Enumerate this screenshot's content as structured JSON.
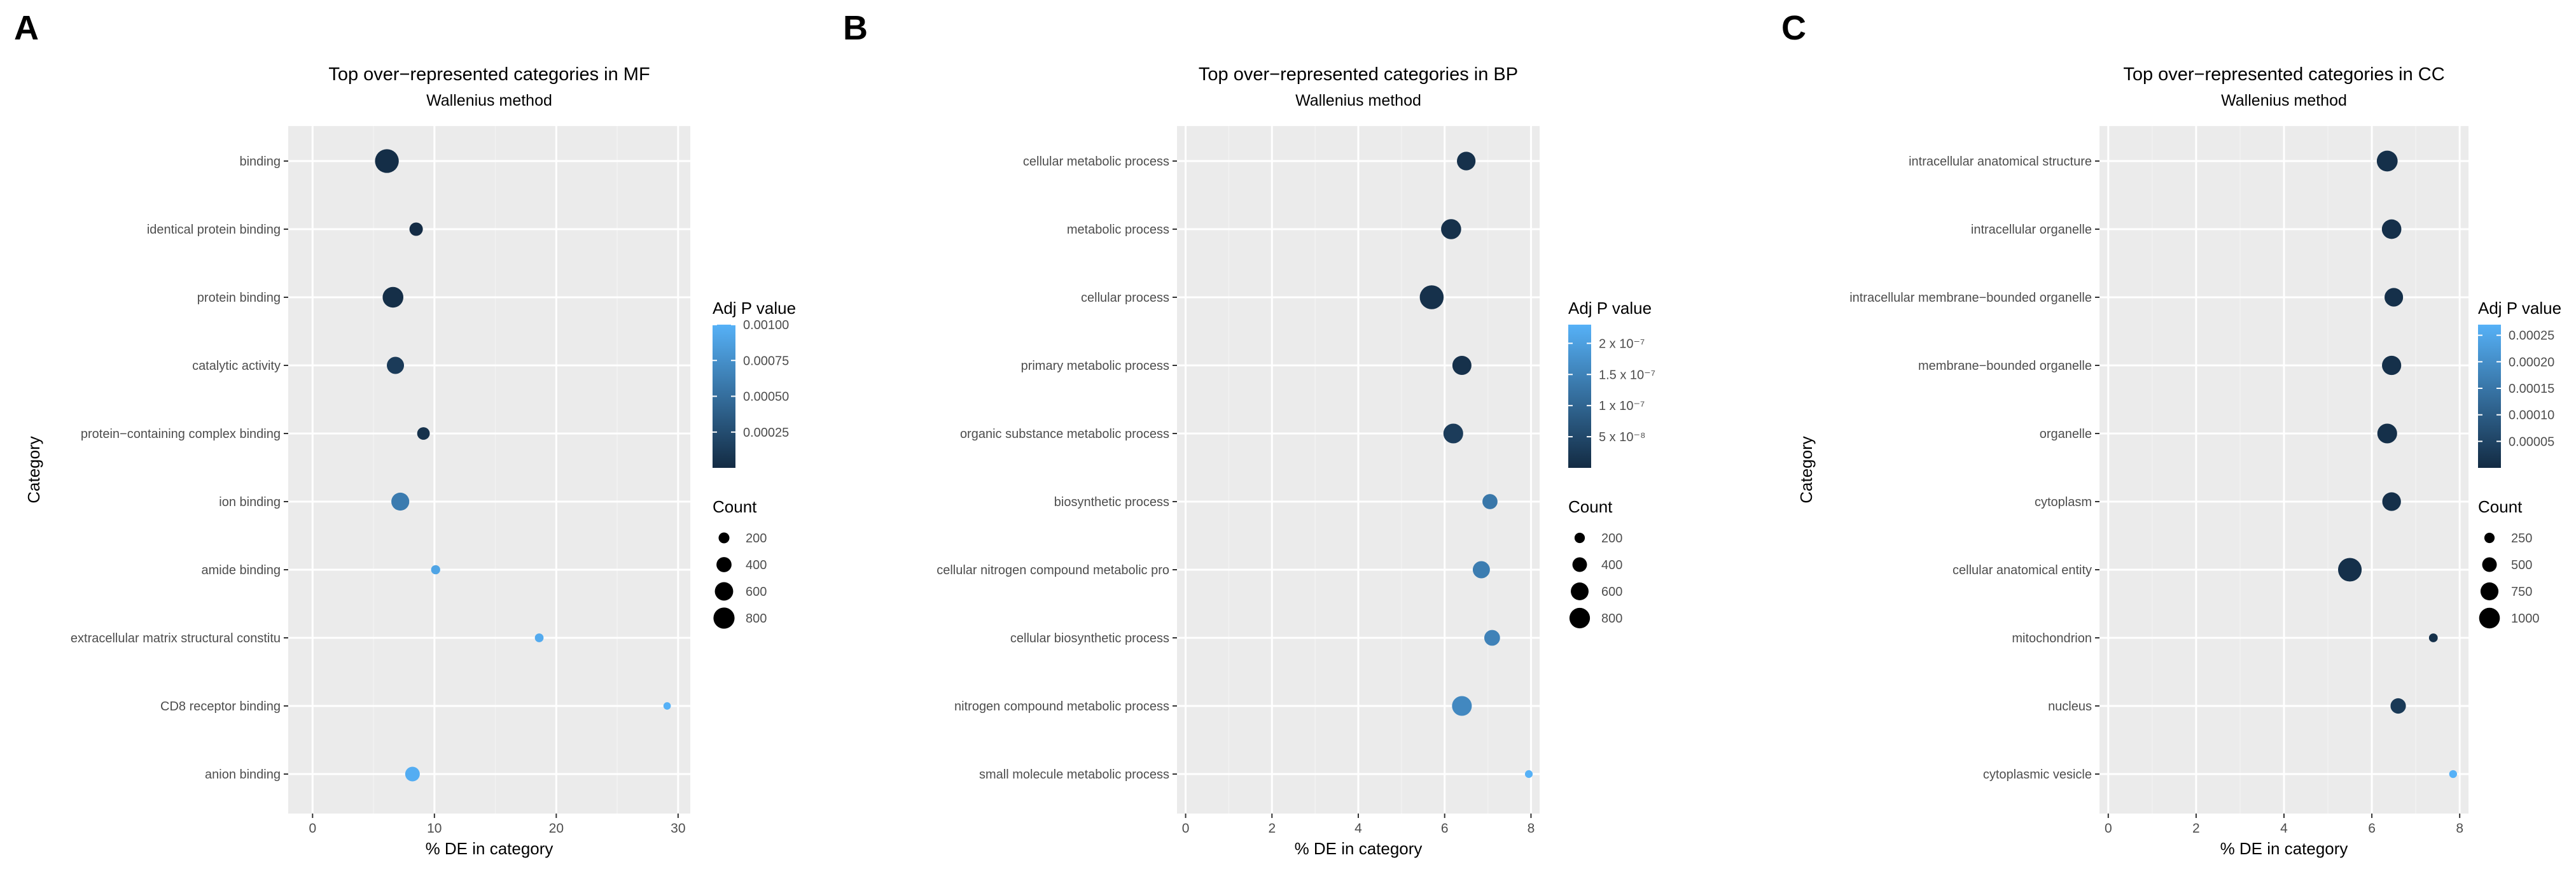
{
  "panels": [
    {
      "letter": "A",
      "chart_data": {
        "type": "scatter",
        "title": "Top over−represented categories in MF",
        "subtitle": "Wallenius  method",
        "xlabel": "% DE in category",
        "ylabel": "Category",
        "xlim": [
          -2,
          31
        ],
        "xticks": [
          0,
          10,
          20,
          30
        ],
        "grid": true,
        "categories": [
          "binding",
          "identical protein binding",
          "protein binding",
          "catalytic activity",
          "protein−containing complex binding",
          "ion binding",
          "amide binding",
          "extracellular matrix structural constitu",
          "CD8 receptor binding",
          "anion binding"
        ],
        "points": [
          {
            "category": "binding",
            "x": 6.1,
            "count": 820,
            "padj": 2e-05
          },
          {
            "category": "identical protein binding",
            "x": 8.5,
            "count": 250,
            "padj": 1e-05
          },
          {
            "category": "protein binding",
            "x": 6.6,
            "count": 620,
            "padj": 3e-05
          },
          {
            "category": "catalytic activity",
            "x": 6.8,
            "count": 420,
            "padj": 0.00012
          },
          {
            "category": "protein−containing complex binding",
            "x": 9.1,
            "count": 220,
            "padj": 5e-05
          },
          {
            "category": "ion binding",
            "x": 7.2,
            "count": 460,
            "padj": 0.0006
          },
          {
            "category": "amide binding",
            "x": 10.1,
            "count": 110,
            "padj": 0.0009
          },
          {
            "category": "extracellular matrix structural constitu",
            "x": 18.6,
            "count": 100,
            "padj": 0.00095
          },
          {
            "category": "CD8 receptor binding",
            "x": 29.1,
            "count": 70,
            "padj": 0.001
          },
          {
            "category": "anion binding",
            "x": 8.2,
            "count": 300,
            "padj": 0.00097
          }
        ],
        "color_legend": {
          "title": "Adj P value",
          "min": 0.0,
          "max": 0.001,
          "tick_values": [
            0.00025,
            0.0005,
            0.00075,
            0.001
          ],
          "tick_labels": [
            "0.00025",
            "0.00050",
            "0.00075",
            "0.00100"
          ]
        },
        "size_legend": {
          "title": "Count",
          "values": [
            200,
            400,
            600,
            800
          ],
          "labels": [
            "200",
            "400",
            "600",
            "800"
          ]
        },
        "size_domain": [
          50,
          850
        ]
      }
    },
    {
      "letter": "B",
      "chart_data": {
        "type": "scatter",
        "title": "Top over−represented categories in BP",
        "subtitle": "Wallenius  method",
        "xlabel": "% DE in category",
        "ylabel": "",
        "xlim": [
          -0.2,
          8.2
        ],
        "xticks": [
          0,
          2,
          4,
          6,
          8
        ],
        "grid": true,
        "categories": [
          "cellular metabolic process",
          "metabolic process",
          "cellular process",
          "primary metabolic process",
          "organic substance metabolic process",
          "biosynthetic process",
          "cellular nitrogen compound metabolic pro",
          "cellular biosynthetic process",
          "nitrogen compound metabolic process",
          "small molecule metabolic process"
        ],
        "points": [
          {
            "category": "cellular metabolic process",
            "x": 6.5,
            "count": 530,
            "padj": 1e-08
          },
          {
            "category": "metabolic process",
            "x": 6.15,
            "count": 620,
            "padj": 1e-08
          },
          {
            "category": "cellular process",
            "x": 5.7,
            "count": 880,
            "padj": 1e-08
          },
          {
            "category": "primary metabolic process",
            "x": 6.4,
            "count": 560,
            "padj": 1e-08
          },
          {
            "category": "organic substance metabolic process",
            "x": 6.2,
            "count": 600,
            "padj": 3e-08
          },
          {
            "category": "biosynthetic process",
            "x": 7.05,
            "count": 350,
            "padj": 1.3e-07
          },
          {
            "category": "cellular nitrogen compound metabolic pro",
            "x": 6.85,
            "count": 450,
            "padj": 1.4e-07
          },
          {
            "category": "cellular biosynthetic process",
            "x": 7.1,
            "count": 380,
            "padj": 1.5e-07
          },
          {
            "category": "nitrogen compound metabolic process",
            "x": 6.4,
            "count": 600,
            "padj": 1.6e-07
          },
          {
            "category": "small molecule metabolic process",
            "x": 7.95,
            "count": 90,
            "padj": 2.3e-07
          }
        ],
        "color_legend": {
          "title": "Adj P value",
          "min": 0.0,
          "max": 2.3e-07,
          "tick_values": [
            5e-08,
            1e-07,
            1.5e-07,
            2e-07
          ],
          "tick_labels": [
            "5 x 10⁻⁸",
            "1 x 10⁻⁷",
            "1.5 x 10⁻⁷",
            "2 x 10⁻⁷"
          ]
        },
        "size_legend": {
          "title": "Count",
          "values": [
            200,
            400,
            600,
            800
          ],
          "labels": [
            "200",
            "400",
            "600",
            "800"
          ]
        },
        "size_domain": [
          60,
          900
        ]
      }
    },
    {
      "letter": "C",
      "chart_data": {
        "type": "scatter",
        "title": "Top over−represented categories in CC",
        "subtitle": "Wallenius  method",
        "xlabel": "% DE in category",
        "ylabel": "Category",
        "xlim": [
          -0.2,
          8.2
        ],
        "xticks": [
          0,
          2,
          4,
          6,
          8
        ],
        "grid": true,
        "categories": [
          "intracellular anatomical structure",
          "intracellular organelle",
          "intracellular membrane−bounded organelle",
          "membrane−bounded organelle",
          "organelle",
          "cytoplasm",
          "cellular anatomical entity",
          "mitochondrion",
          "nucleus",
          "cytoplasmic vesicle"
        ],
        "points": [
          {
            "category": "intracellular anatomical structure",
            "x": 6.35,
            "count": 820,
            "padj": 1e-05
          },
          {
            "category": "intracellular organelle",
            "x": 6.45,
            "count": 720,
            "padj": 1e-05
          },
          {
            "category": "intracellular membrane−bounded organelle",
            "x": 6.5,
            "count": 650,
            "padj": 1e-05
          },
          {
            "category": "membrane−bounded organelle",
            "x": 6.45,
            "count": 700,
            "padj": 1e-05
          },
          {
            "category": "organelle",
            "x": 6.35,
            "count": 740,
            "padj": 1e-05
          },
          {
            "category": "cytoplasm",
            "x": 6.45,
            "count": 660,
            "padj": 1e-05
          },
          {
            "category": "cellular anatomical entity",
            "x": 5.5,
            "count": 1050,
            "padj": 1e-05
          },
          {
            "category": "mitochondrion",
            "x": 7.4,
            "count": 150,
            "padj": 1e-05
          },
          {
            "category": "nucleus",
            "x": 6.6,
            "count": 450,
            "padj": 3e-05
          },
          {
            "category": "cytoplasmic vesicle",
            "x": 7.85,
            "count": 120,
            "padj": 0.00027
          }
        ],
        "color_legend": {
          "title": "Adj P value",
          "min": 0.0,
          "max": 0.00027,
          "tick_values": [
            5e-05,
            0.0001,
            0.00015,
            0.0002,
            0.00025
          ],
          "tick_labels": [
            "0.00005",
            "0.00010",
            "0.00015",
            "0.00020",
            "0.00025"
          ]
        },
        "size_legend": {
          "title": "Count",
          "values": [
            250,
            500,
            750,
            1000
          ],
          "labels": [
            "250",
            "500",
            "750",
            "1000"
          ]
        },
        "size_domain": [
          80,
          1100
        ]
      }
    }
  ],
  "colors": {
    "low": "#132B43",
    "high": "#56B1F7",
    "panel_bg": "#EBEBEB",
    "grid_major": "#FFFFFF",
    "grid_minor": "#F2F2F2",
    "text": "#4D4D4D",
    "title": "#000000"
  }
}
